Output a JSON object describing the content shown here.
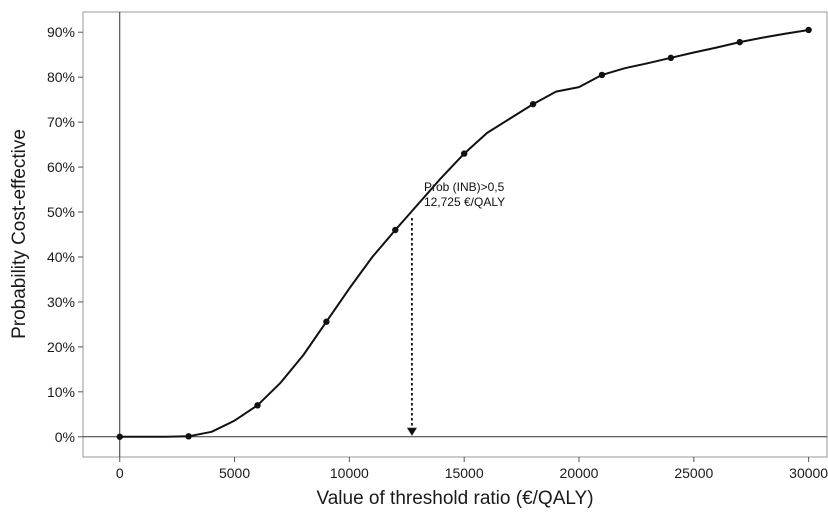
{
  "chart_data": {
    "type": "line",
    "title": "",
    "xlabel": "Value of threshold ratio (€/QALY)",
    "ylabel": "Probability Cost-effective",
    "xlim": [
      -1600,
      30800
    ],
    "ylim": [
      -4.5,
      94.5
    ],
    "x_ticks": [
      0,
      5000,
      10000,
      15000,
      20000,
      25000,
      30000
    ],
    "x_tick_labels": [
      "0",
      "5000",
      "10000",
      "15000",
      "20000",
      "25000",
      "30000"
    ],
    "y_ticks": [
      0,
      10,
      20,
      30,
      40,
      50,
      60,
      70,
      80,
      90
    ],
    "y_tick_labels": [
      "0%",
      "10%",
      "20%",
      "30%",
      "40%",
      "50%",
      "60%",
      "70%",
      "80%",
      "90%"
    ],
    "grid": false,
    "series": [
      {
        "color": "#111111",
        "x": [
          0,
          1000,
          2000,
          3000,
          4000,
          5000,
          6000,
          7000,
          8000,
          9000,
          10000,
          11000,
          12000,
          13000,
          14000,
          15000,
          16000,
          17000,
          18000,
          19000,
          20000,
          21000,
          22000,
          23000,
          24000,
          25000,
          26000,
          27000,
          28000,
          29000,
          30000
        ],
        "y": [
          0,
          0,
          0,
          0.1,
          1.1,
          3.6,
          7.0,
          12.0,
          18.2,
          25.6,
          33.0,
          40.0,
          46.0,
          51.8,
          57.6,
          63.0,
          67.6,
          70.8,
          74.0,
          76.8,
          77.8,
          80.5,
          82.0,
          83.1,
          84.3,
          85.5,
          86.6,
          87.8,
          88.8,
          89.7,
          90.5
        ],
        "markers_x": [
          0,
          3000,
          6000,
          9000,
          12000,
          15000,
          18000,
          21000,
          24000,
          27000,
          30000
        ],
        "markers_y": [
          0,
          0.1,
          7.0,
          25.6,
          46.0,
          63.0,
          74.0,
          80.5,
          84.3,
          87.8,
          90.5
        ]
      }
    ],
    "reference_lines": {
      "x": 0,
      "y": 0
    },
    "annotation": {
      "lines": [
        "Prob (INB)>0,5",
        "12,725 €/QALY"
      ],
      "x": 12725,
      "y": 50
    }
  }
}
